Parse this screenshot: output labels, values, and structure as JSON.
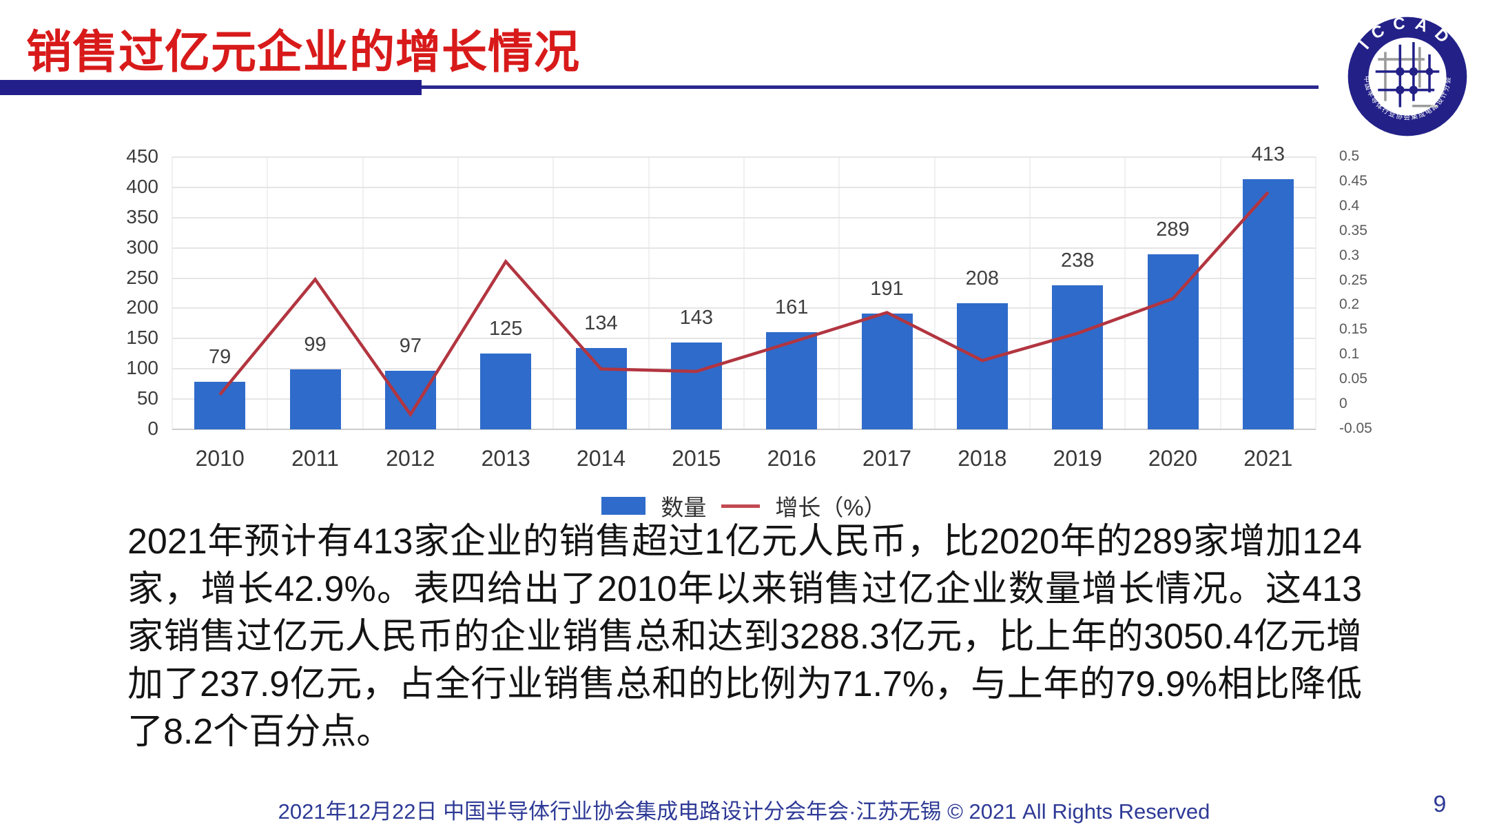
{
  "slide": {
    "title": "销售过亿元企业的增长情况",
    "body_text": "2021年预计有413家企业的销售超过1亿元人民币，比2020年的289家增加124家，增长42.9%。表四给出了2010年以来销售过亿企业数量增长情况。这413家销售过亿元人民币的企业销售总和达到3288.3亿元，比上年的3050.4亿元增加了237.9亿元，占全行业销售总和的比例为71.7%，与上年的79.9%相比降低了8.2个百分点。",
    "footer": "2021年12月22日 中国半导体行业协会集成电路设计分会年会·江苏无锡 © 2021 All Rights Reserved",
    "page_number": "9"
  },
  "logo": {
    "top_text": "ICCAD",
    "bottom_text": "中国半导体行业协会集成电路设计分会",
    "ring_color": "#232188"
  },
  "colors": {
    "title_red": "#d81a1a",
    "divider_navy": "#221f8b",
    "bar_blue": "#2f6bca",
    "line_red": "#b23540",
    "footer_navy": "#2e3a96"
  },
  "chart_data": {
    "type": "bar",
    "note": "combo bar + line chart, line on right axis",
    "categories": [
      "2010",
      "2011",
      "2012",
      "2013",
      "2014",
      "2015",
      "2016",
      "2017",
      "2018",
      "2019",
      "2020",
      "2021"
    ],
    "series": [
      {
        "name": "数量",
        "type": "bar",
        "axis": "left",
        "color": "#2f6bca",
        "values": [
          79,
          99,
          97,
          125,
          134,
          143,
          161,
          191,
          208,
          238,
          289,
          413
        ]
      },
      {
        "name": "增长（%）",
        "type": "line",
        "axis": "right",
        "color": "#b23540",
        "values": [
          0.02,
          0.253,
          -0.02,
          0.289,
          0.072,
          0.067,
          0.126,
          0.186,
          0.089,
          0.144,
          0.214,
          0.429
        ]
      }
    ],
    "left_axis": {
      "min": 0,
      "max": 450,
      "step": 50,
      "ticks": [
        "450",
        "400",
        "350",
        "300",
        "250",
        "200",
        "150",
        "100",
        "50",
        "0"
      ]
    },
    "right_axis": {
      "min": -0.05,
      "max": 0.5,
      "step": 0.05,
      "ticks": [
        "0.5",
        "0.45",
        "0.4",
        "0.35",
        "0.3",
        "0.25",
        "0.2",
        "0.15",
        "0.1",
        "0.05",
        "0",
        "-0.05"
      ]
    },
    "grid": true,
    "legend_position": "bottom",
    "bar_value_labels": true
  }
}
